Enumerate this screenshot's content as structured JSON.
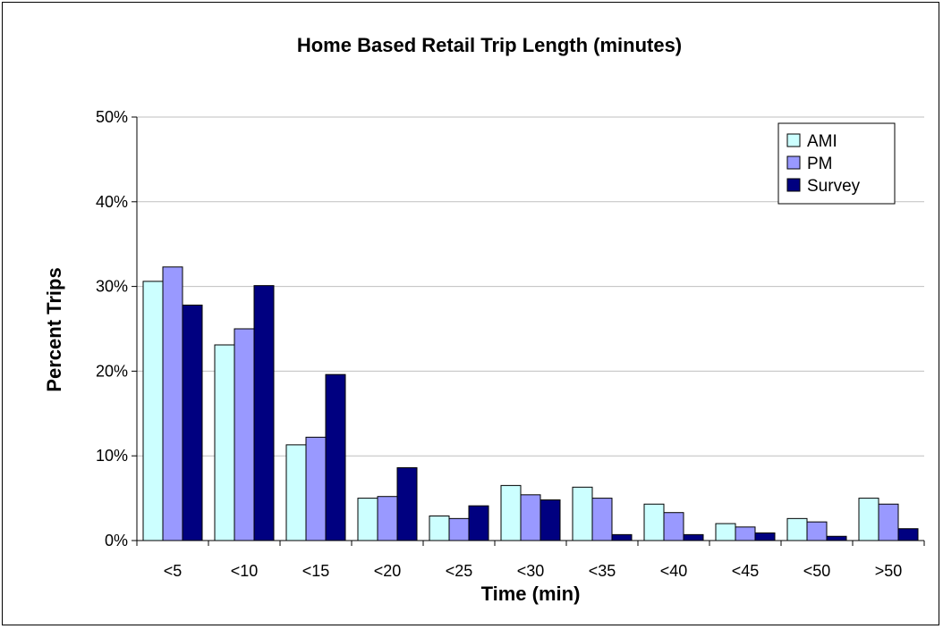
{
  "chart_data": {
    "type": "bar",
    "title": "Home Based Retail Trip Length (minutes)",
    "xlabel": "Time (min)",
    "ylabel": "Percent Trips",
    "categories": [
      "<5",
      "<10",
      "<15",
      "<20",
      "<25",
      "<30",
      "<35",
      "<40",
      "<45",
      "<50",
      ">50"
    ],
    "yticks": [
      "0%",
      "10%",
      "20%",
      "30%",
      "40%",
      "50%"
    ],
    "ylim": [
      0,
      50
    ],
    "grid": true,
    "legend_position": "top-right",
    "series": [
      {
        "name": "AMI",
        "color": "#CCFFFF",
        "values": [
          30.6,
          23.1,
          11.3,
          5.0,
          2.9,
          6.5,
          6.3,
          4.3,
          2.0,
          2.6,
          5.0
        ]
      },
      {
        "name": "PM",
        "color": "#9999FF",
        "values": [
          32.3,
          25.0,
          12.2,
          5.2,
          2.6,
          5.4,
          5.0,
          3.3,
          1.6,
          2.2,
          4.3
        ]
      },
      {
        "name": "Survey",
        "color": "#000080",
        "values": [
          27.8,
          30.1,
          19.6,
          8.6,
          4.1,
          4.8,
          0.7,
          0.7,
          0.9,
          0.5,
          1.4
        ]
      }
    ]
  }
}
